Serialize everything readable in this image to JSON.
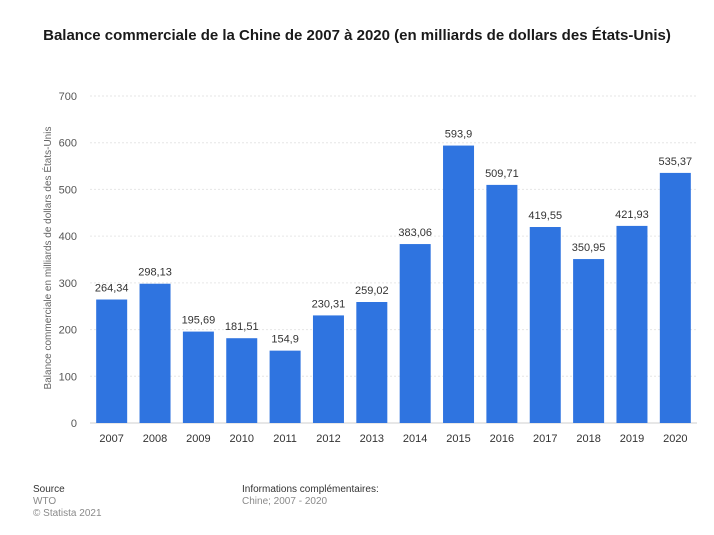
{
  "chart_data": {
    "type": "bar",
    "title": "Balance commerciale de la Chine de 2007 à 2020 (en milliards de dollars des États-Unis)",
    "xlabel": "",
    "ylabel": "Balance commerciale en milliards de dollars des États-Unis",
    "categories": [
      "2007",
      "2008",
      "2009",
      "2010",
      "2011",
      "2012",
      "2013",
      "2014",
      "2015",
      "2016",
      "2017",
      "2018",
      "2019",
      "2020"
    ],
    "values": [
      264.34,
      298.13,
      195.69,
      181.51,
      154.9,
      230.31,
      259.02,
      383.06,
      593.9,
      509.71,
      419.55,
      350.95,
      421.93,
      535.37
    ],
    "value_labels": [
      "264,34",
      "298,13",
      "195,69",
      "181,51",
      "154,9",
      "230,31",
      "259,02",
      "383,06",
      "593,9",
      "509,71",
      "419,55",
      "350,95",
      "421,93",
      "535,37"
    ],
    "ylim": [
      0,
      700
    ],
    "yticks": [
      0,
      100,
      200,
      300,
      400,
      500,
      600,
      700
    ],
    "grid": true,
    "bar_color": "#2f74e0"
  },
  "footer": {
    "source_heading": "Source",
    "source_name": "WTO",
    "copyright": "© Statista 2021",
    "info_heading": "Informations complémentaires:",
    "info_text": "Chine; 2007 - 2020"
  }
}
